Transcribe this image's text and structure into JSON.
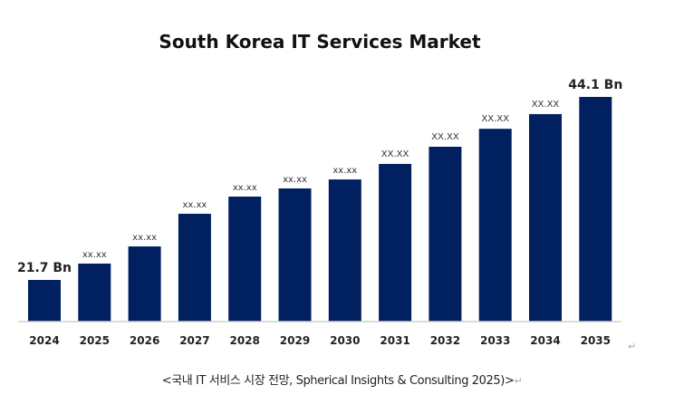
{
  "chart_data": {
    "type": "bar",
    "title": "South Korea IT Services Market",
    "categories": [
      "2024",
      "2025",
      "2026",
      "2027",
      "2028",
      "2029",
      "2030",
      "2031",
      "2032",
      "2033",
      "2034",
      "2035"
    ],
    "values": [
      21.7,
      23.7,
      25.8,
      29.8,
      31.9,
      32.9,
      34.0,
      35.9,
      38.0,
      40.2,
      42.0,
      44.1
    ],
    "data_labels": [
      "21.7 Bn",
      "xx.xx",
      "xx.xx",
      "xx.xx",
      "xx.xx",
      "xx.xx",
      "xx.xx",
      "XX.XX",
      "XX.XX",
      "XX.XX",
      "XX.XX",
      "44.1 Bn"
    ],
    "ylim": [
      16.6,
      44.1
    ],
    "xlabel": "",
    "ylabel": "",
    "grid": false,
    "legend": "none",
    "bar_color": "#002060"
  },
  "caption": "<국내 IT 서비스 시장 전망, Spherical Insights & Consulting 2025)>",
  "return_mark": "↵"
}
